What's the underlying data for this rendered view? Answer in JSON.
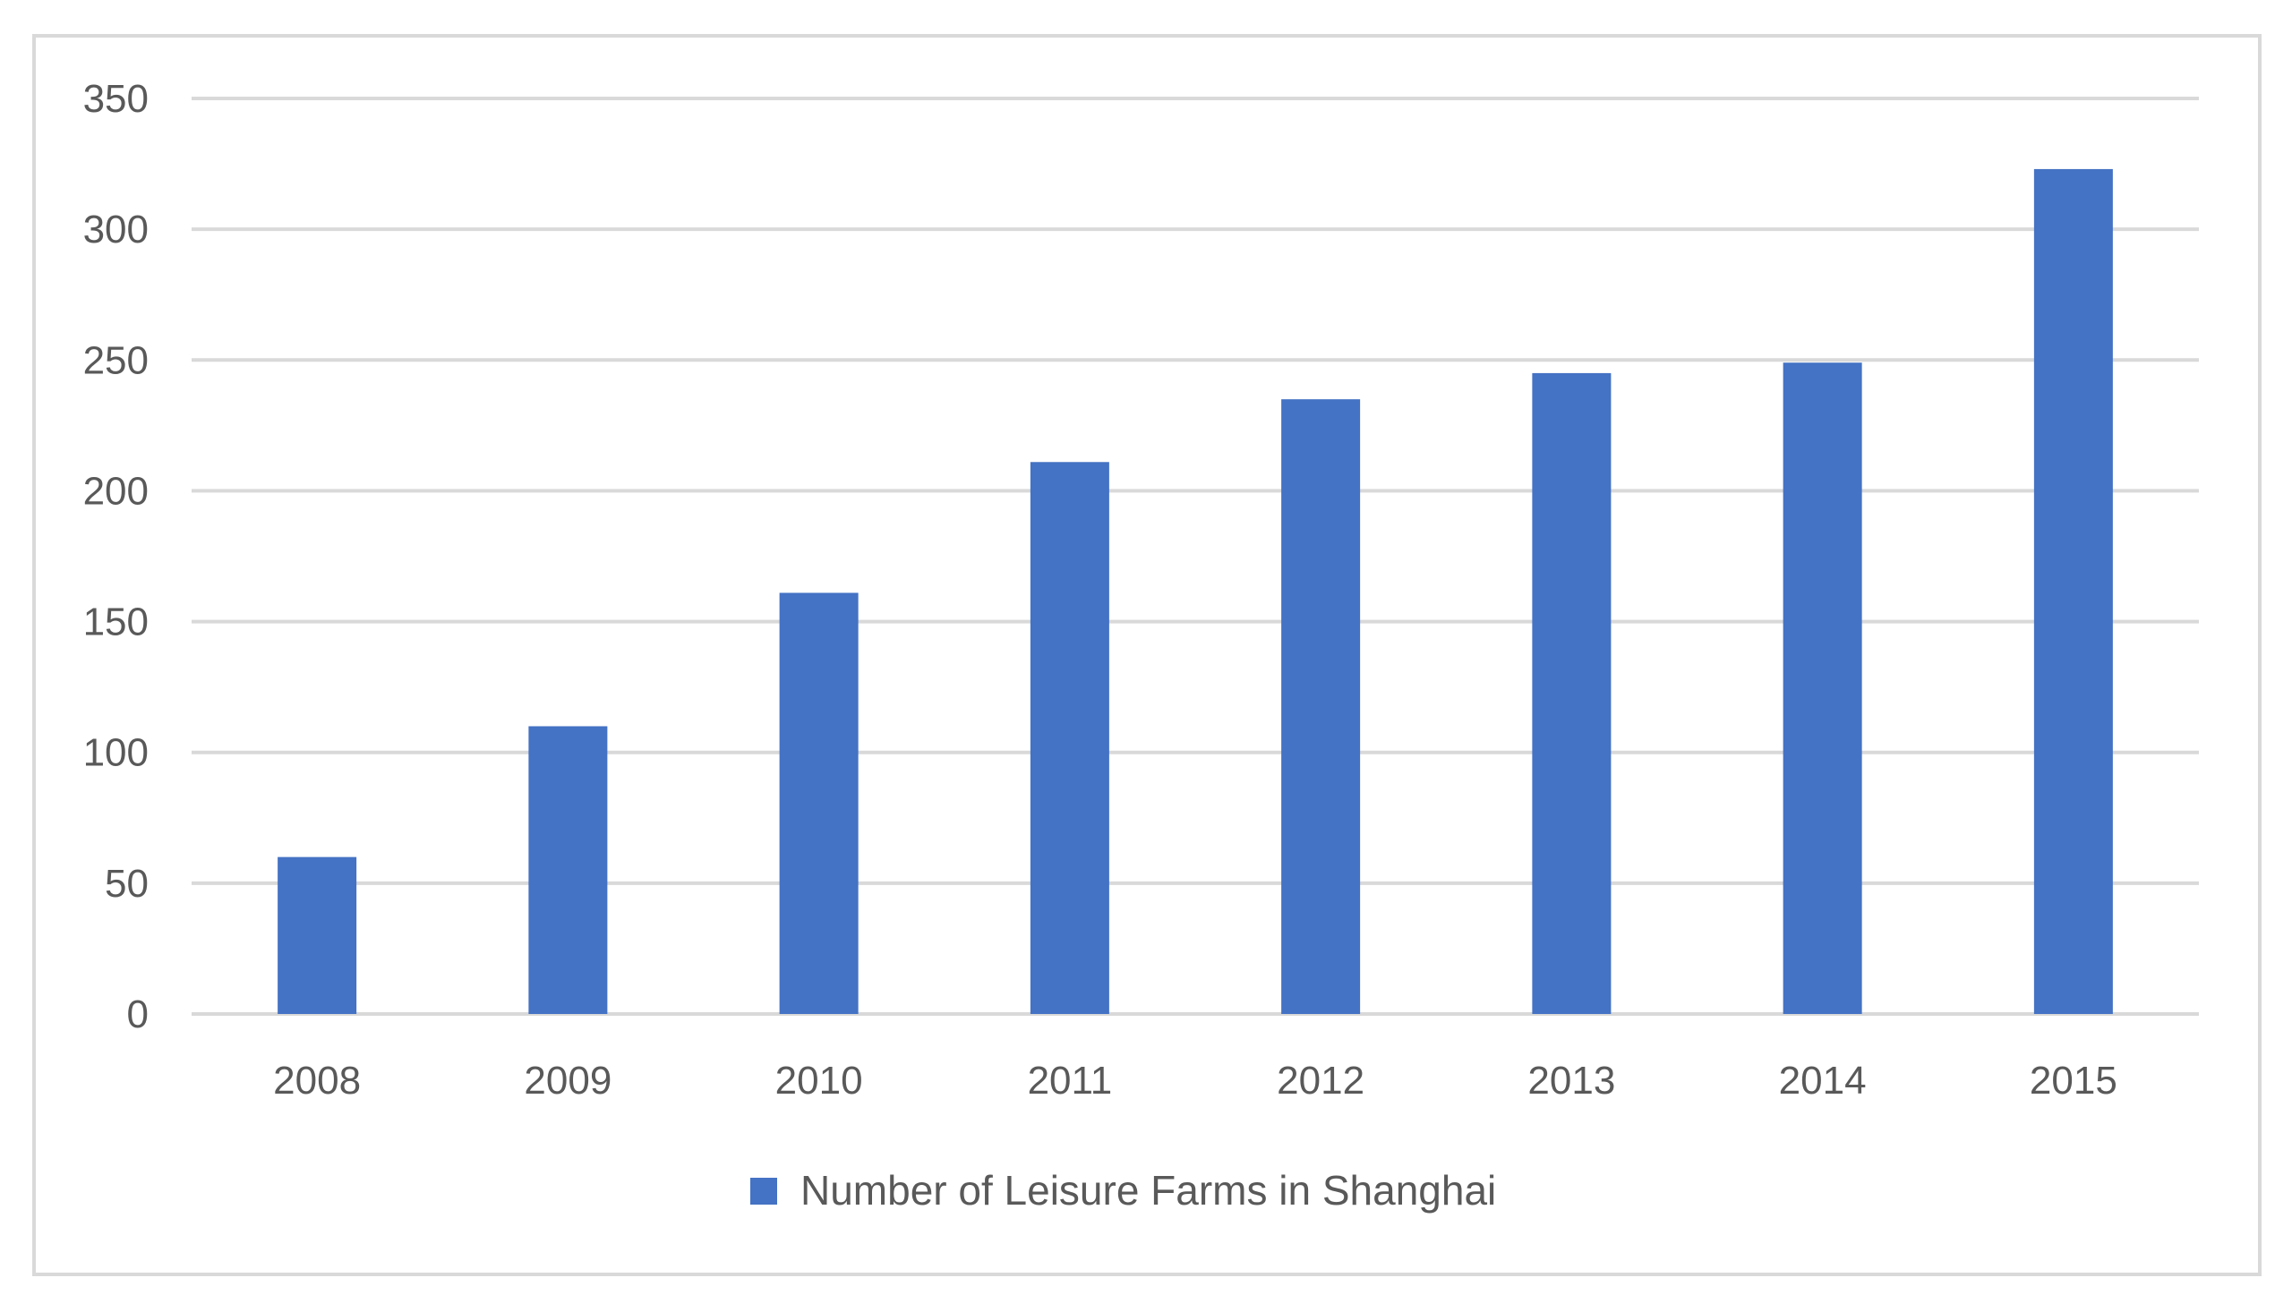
{
  "chart_data": {
    "type": "bar",
    "categories": [
      "2008",
      "2009",
      "2010",
      "2011",
      "2012",
      "2013",
      "2014",
      "2015"
    ],
    "series": [
      {
        "name": "Number of Leisure Farms in Shanghai",
        "color": "#4472c4",
        "values": [
          60,
          110,
          161,
          211,
          235,
          245,
          249,
          323
        ]
      }
    ],
    "yticks": [
      "0",
      "50",
      "100",
      "150",
      "200",
      "250",
      "300",
      "350"
    ],
    "ylim": [
      0,
      350
    ],
    "grid": true,
    "legend_position": "bottom"
  }
}
